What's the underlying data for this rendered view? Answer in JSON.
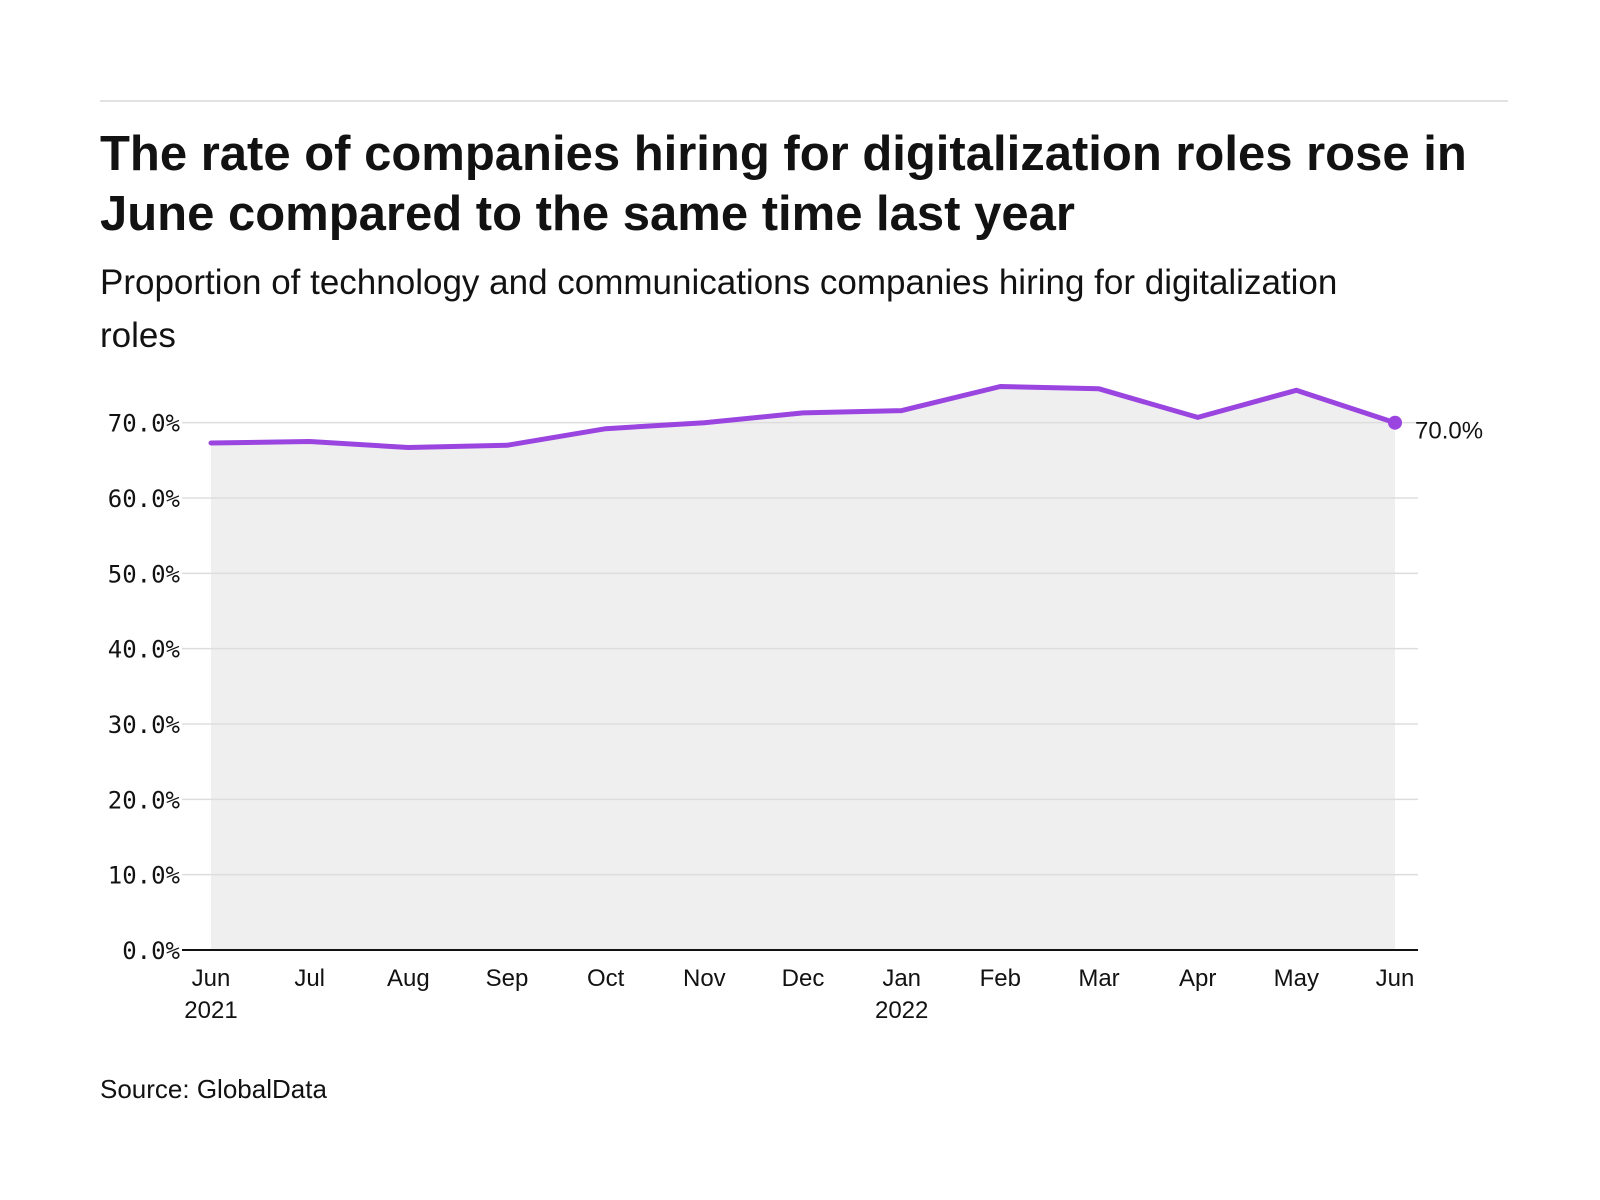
{
  "header": {
    "title": "The rate of companies hiring for digitalization roles rose in June compared to the same time last year",
    "subtitle": "Proportion of technology and communications companies hiring for digitalization roles"
  },
  "footer": {
    "source": "Source: GlobalData"
  },
  "colors": {
    "line": "#9b45e0",
    "area": "#efefef",
    "grid": "#dddddd",
    "axis": "#121212",
    "text": "#121212"
  },
  "chart_data": {
    "type": "area",
    "title": "The rate of companies hiring for digitalization roles rose in June compared to the same time last year",
    "subtitle": "Proportion of technology and communications companies hiring for digitalization roles",
    "xlabel": "",
    "ylabel": "",
    "ylim": [
      0,
      75
    ],
    "y_ticks": [
      "0.0%",
      "10.0%",
      "20.0%",
      "30.0%",
      "40.0%",
      "50.0%",
      "60.0%",
      "70.0%"
    ],
    "y_tick_values": [
      0,
      10,
      20,
      30,
      40,
      50,
      60,
      70
    ],
    "x_tick_labels": [
      {
        "month": "Jun",
        "year": "2021"
      },
      {
        "month": "Jul",
        "year": ""
      },
      {
        "month": "Aug",
        "year": ""
      },
      {
        "month": "Sep",
        "year": ""
      },
      {
        "month": "Oct",
        "year": ""
      },
      {
        "month": "Nov",
        "year": ""
      },
      {
        "month": "Dec",
        "year": ""
      },
      {
        "month": "Jan",
        "year": "2022"
      },
      {
        "month": "Feb",
        "year": ""
      },
      {
        "month": "Mar",
        "year": ""
      },
      {
        "month": "Apr",
        "year": ""
      },
      {
        "month": "May",
        "year": ""
      },
      {
        "month": "Jun",
        "year": ""
      }
    ],
    "x": [
      "2021-06-01",
      "2021-07-01",
      "2021-08-01",
      "2021-09-01",
      "2021-10-01",
      "2021-11-01",
      "2021-12-01",
      "2022-01-01",
      "2022-02-01",
      "2022-03-01",
      "2022-04-01",
      "2022-05-01",
      "2022-06-01"
    ],
    "series": [
      {
        "values": [
          67.3,
          67.5,
          66.7,
          67.0,
          69.2,
          70.0,
          71.3,
          71.6,
          74.8,
          74.5,
          70.7,
          74.3,
          70.0
        ]
      }
    ],
    "end_label": "70.0%",
    "grid": true,
    "legend": "none"
  }
}
